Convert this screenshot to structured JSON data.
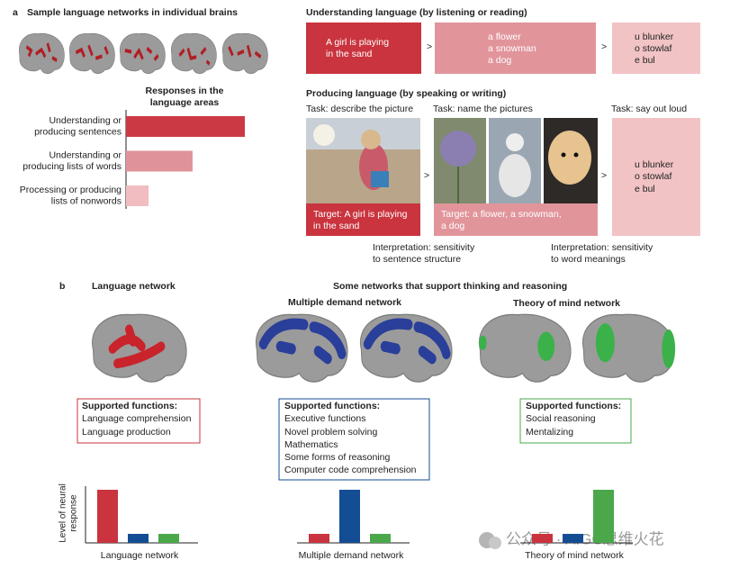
{
  "panel_a": {
    "label": "a",
    "brains_title": "Sample language networks in individual brains",
    "separator": ">",
    "understanding": {
      "title": "Understanding language (by listening or reading)",
      "boxes": [
        [
          "A girl is playing",
          "in the sand"
        ],
        [
          "a flower",
          "a snowman",
          "a dog"
        ],
        [
          "u blunker",
          "o stowlaf",
          "e bul"
        ]
      ]
    },
    "producing": {
      "title": "Producing language (by speaking or writing)",
      "tasks": [
        "Task: describe the picture",
        "Task: name the pictures",
        "Task: say out loud"
      ],
      "targets": [
        [
          "Target: A girl is playing",
          "in the sand"
        ],
        [
          "Target: a flower, a snowman,",
          "a dog"
        ]
      ],
      "nonwords": [
        "u blunker",
        "o stowlaf",
        "e bul"
      ],
      "interpretations": [
        [
          "Interpretation: sensitivity",
          "to sentence structure"
        ],
        [
          "Interpretation: sensitivity",
          "to word meanings"
        ]
      ]
    }
  },
  "panel_b": {
    "label": "b",
    "language_title": "Language network",
    "others_title": "Some networks that support thinking and reasoning",
    "md_title": "Multiple demand network",
    "tom_title": "Theory of mind network",
    "function_boxes": [
      {
        "title": "Supported functions:",
        "items": [
          "Language comprehension",
          "Language production"
        ]
      },
      {
        "title": "Supported functions:",
        "items": [
          "Executive functions",
          "Novel problem solving",
          "Mathematics",
          "Some forms of reasoning",
          "Computer code comprehension"
        ]
      },
      {
        "title": "Supported functions:",
        "items": [
          "Social reasoning",
          "Mentalizing"
        ]
      }
    ]
  },
  "watermark": "公众号 · AIGC思维火花",
  "chart_data": [
    {
      "type": "hbar",
      "title": [
        "Responses in the",
        "language areas"
      ],
      "categories": [
        [
          "Understanding or",
          "producing sentences"
        ],
        [
          "Understanding or",
          "producing lists of words"
        ],
        [
          "Processing or producing",
          "lists of nonwords"
        ]
      ],
      "values": [
        1.0,
        0.56,
        0.19
      ],
      "colors": [
        "#cb3a44",
        "#e0929a",
        "#f1bdc1"
      ],
      "xlim": [
        0,
        1
      ]
    },
    {
      "type": "bar",
      "ylabel": [
        "Level of neural",
        "response"
      ],
      "xlabel": "Language network",
      "categories": [
        null,
        null,
        null
      ],
      "values": [
        1.0,
        0.17,
        0.17
      ],
      "colors": [
        "#c9343e",
        "#134d94",
        "#4aa84a"
      ],
      "ylim": [
        0,
        1
      ]
    },
    {
      "type": "bar",
      "xlabel": "Multiple demand network",
      "categories": [
        null,
        null,
        null
      ],
      "values": [
        0.17,
        1.0,
        0.17
      ],
      "colors": [
        "#c9343e",
        "#134d94",
        "#4aa84a"
      ],
      "ylim": [
        0,
        1
      ]
    },
    {
      "type": "bar",
      "xlabel": "Theory of mind network",
      "categories": [
        null,
        null,
        null
      ],
      "values": [
        0.17,
        0.17,
        1.0
      ],
      "colors": [
        "#c9343e",
        "#134d94",
        "#4aa84a"
      ],
      "ylim": [
        0,
        1
      ]
    }
  ]
}
